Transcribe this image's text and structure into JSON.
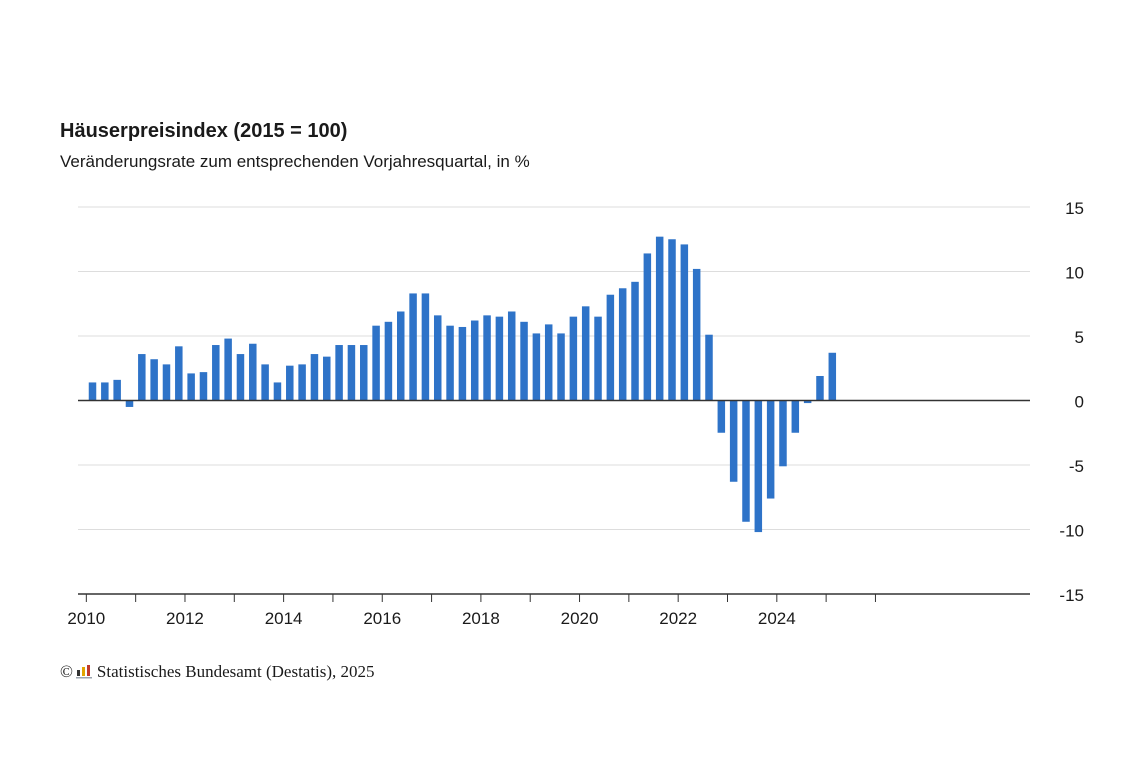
{
  "chart_data": {
    "type": "bar",
    "title": "Häuserpreisindex (2015 = 100)",
    "subtitle": "Veränderungsrate zum entsprechenden Vorjahresquartal, in %",
    "xlabel": "",
    "ylabel": "",
    "ylim": [
      -15,
      15
    ],
    "yticks": [
      "15",
      "10",
      "5",
      "0",
      "-5",
      "-10",
      "-15"
    ],
    "xtick_labels": [
      "2010",
      "2012",
      "2014",
      "2016",
      "2018",
      "2020",
      "2022",
      "2024"
    ],
    "grid": true,
    "bar_color": "#2e73c8",
    "categories": [
      "2010-Q1",
      "2010-Q2",
      "2010-Q3",
      "2010-Q4",
      "2011-Q1",
      "2011-Q2",
      "2011-Q3",
      "2011-Q4",
      "2012-Q1",
      "2012-Q2",
      "2012-Q3",
      "2012-Q4",
      "2013-Q1",
      "2013-Q2",
      "2013-Q3",
      "2013-Q4",
      "2014-Q1",
      "2014-Q2",
      "2014-Q3",
      "2014-Q4",
      "2015-Q1",
      "2015-Q2",
      "2015-Q3",
      "2015-Q4",
      "2016-Q1",
      "2016-Q2",
      "2016-Q3",
      "2016-Q4",
      "2017-Q1",
      "2017-Q2",
      "2017-Q3",
      "2017-Q4",
      "2018-Q1",
      "2018-Q2",
      "2018-Q3",
      "2018-Q4",
      "2019-Q1",
      "2019-Q2",
      "2019-Q3",
      "2019-Q4",
      "2020-Q1",
      "2020-Q2",
      "2020-Q3",
      "2020-Q4",
      "2021-Q1",
      "2021-Q2",
      "2021-Q3",
      "2021-Q4",
      "2022-Q1",
      "2022-Q2",
      "2022-Q3",
      "2022-Q4",
      "2023-Q1",
      "2023-Q2",
      "2023-Q3",
      "2023-Q4",
      "2024-Q1",
      "2024-Q2",
      "2024-Q3",
      "2024-Q4",
      "2025-Q1"
    ],
    "values": [
      1.4,
      1.4,
      1.6,
      -0.5,
      3.6,
      3.2,
      2.8,
      4.2,
      2.1,
      2.2,
      4.3,
      4.8,
      3.6,
      4.4,
      2.8,
      1.4,
      2.7,
      2.8,
      3.6,
      3.4,
      4.3,
      4.3,
      4.3,
      5.8,
      6.1,
      6.9,
      8.3,
      8.3,
      6.6,
      5.8,
      5.7,
      6.2,
      6.6,
      6.5,
      6.9,
      6.1,
      5.2,
      5.9,
      5.2,
      6.5,
      7.3,
      6.5,
      8.2,
      8.7,
      9.2,
      11.4,
      12.7,
      12.5,
      12.1,
      10.2,
      5.1,
      -2.5,
      -6.3,
      -9.4,
      -10.2,
      -7.6,
      -5.1,
      -2.5,
      -0.2,
      1.9,
      3.7
    ]
  },
  "footer": {
    "copyright_symbol": "©",
    "source": "Statistisches Bundesamt (Destatis), 2025"
  }
}
